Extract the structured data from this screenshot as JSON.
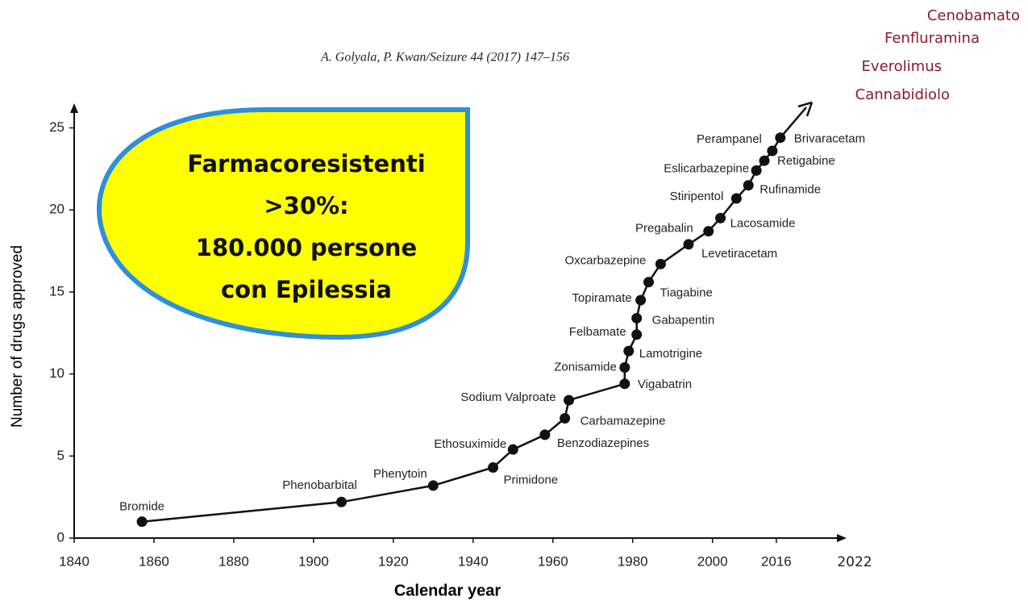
{
  "chart_data": {
    "type": "line",
    "citation": "A. Golyala, P. Kwan/Seizure 44 (2017) 147–156",
    "callout": [
      "Farmacoresistenti",
      ">30%:",
      "180.000 persone",
      "con Epilessia"
    ],
    "new_drugs": [
      "Cenobamato",
      "Fenfluramina",
      "Everolimus",
      "Cannabidiolo"
    ],
    "x_label": "Calendar year",
    "y_label": "Number of drugs approved",
    "x_end_label": "2022",
    "xlim": [
      1840,
      2032
    ],
    "ylim": [
      0,
      26.5
    ],
    "xticks": [
      1840,
      1860,
      1880,
      1900,
      1920,
      1940,
      1960,
      1980,
      2000,
      2016
    ],
    "yticks": [
      0,
      5,
      10,
      15,
      20,
      25
    ],
    "color": "#111111",
    "x": [
      1857,
      1907,
      1930,
      1945,
      1950,
      1958,
      1963,
      1964,
      1978,
      1978,
      1979,
      1981,
      1981,
      1982,
      1984,
      1987,
      1994,
      1999,
      2002,
      2006,
      2009,
      2011,
      2013,
      2015,
      2017
    ],
    "values": [
      1,
      2.2,
      3.2,
      4.3,
      5.4,
      6.3,
      7.3,
      8.4,
      9.4,
      10.4,
      11.4,
      12.4,
      13.4,
      14.5,
      15.6,
      16.7,
      17.9,
      18.7,
      19.5,
      20.7,
      21.5,
      22.4,
      23,
      23.6,
      24.4
    ],
    "point_labels": [
      "Bromide",
      "Phenobarbital",
      "Phenytoin",
      "Primidone",
      "Ethosuximide",
      "Benzodiazepines",
      "Carbamazepine",
      "Sodium Valproate",
      "Vigabatrin",
      "Zonisamide",
      "Lamotrigine",
      "Felbamate",
      "Gabapentin",
      "Topiramate",
      "Tiagabine",
      "Oxcarbazepine",
      "Levetiracetam",
      "Pregabalin",
      "Lacosamide",
      "Stiripentol",
      "Rufinamide",
      "Eslicarbazepine",
      "Retigabine",
      "Perampanel",
      "Brivaracetam"
    ]
  }
}
